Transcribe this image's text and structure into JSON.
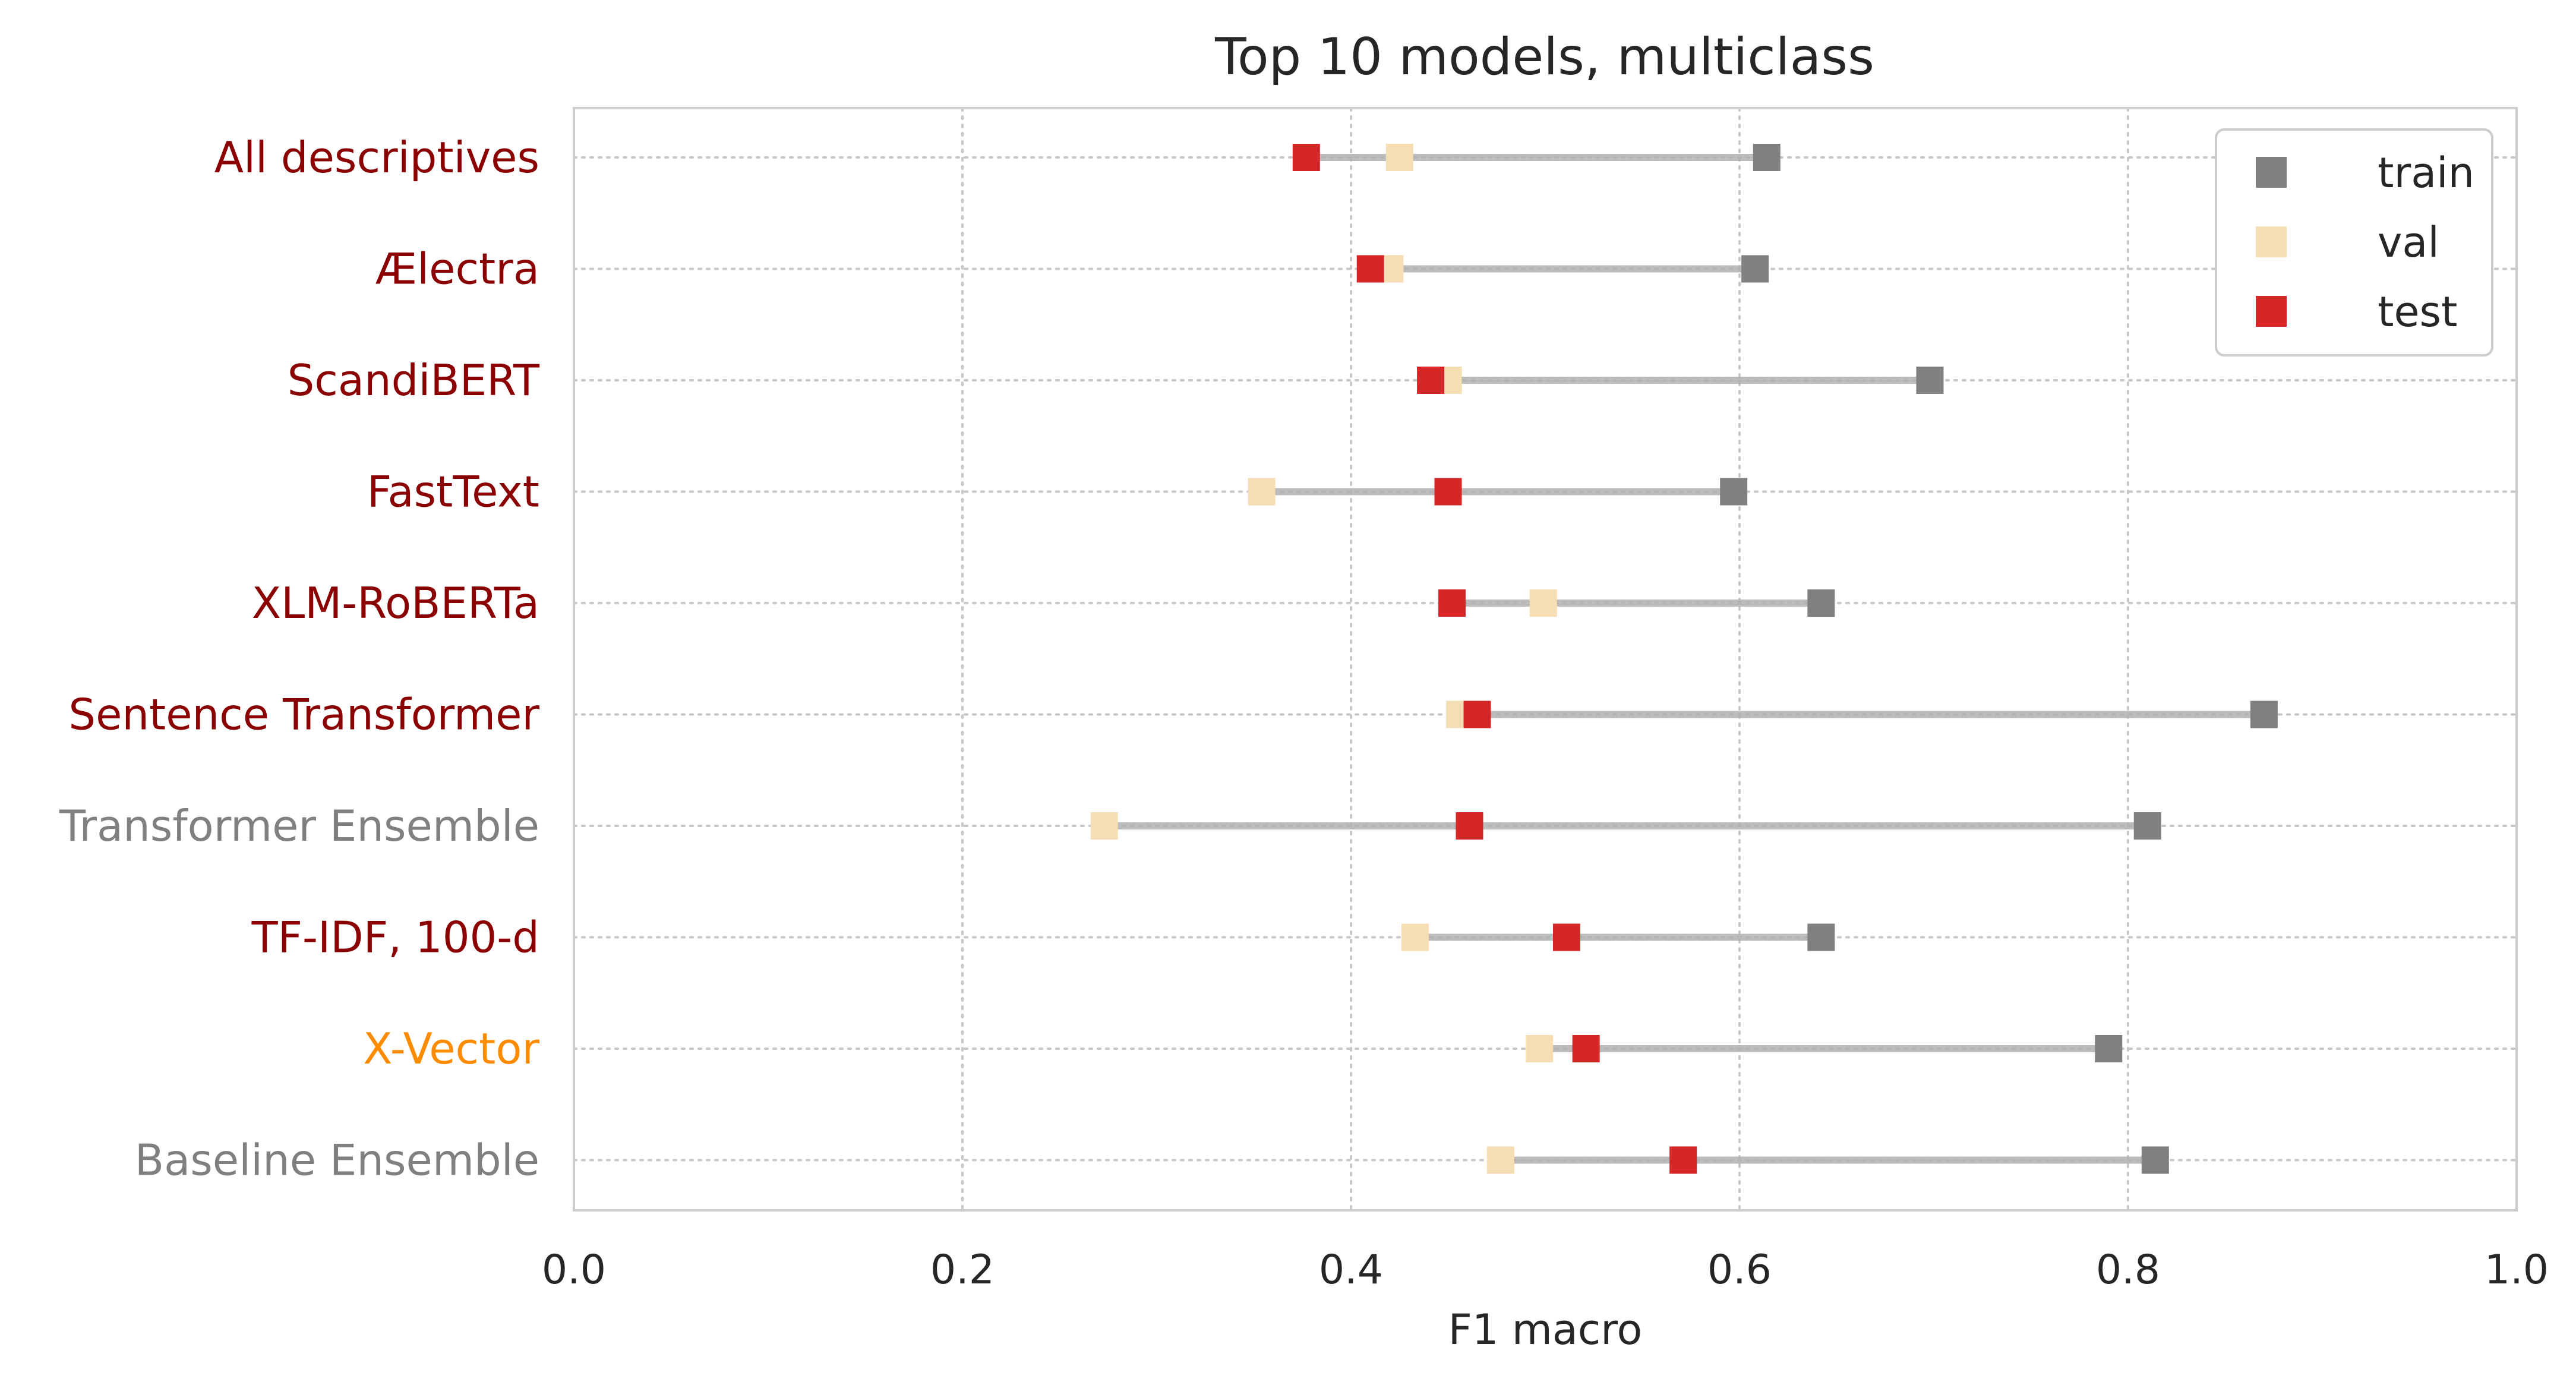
{
  "chart_data": {
    "type": "scatter",
    "title": "Top 10 models, multiclass",
    "xlabel": "F1 macro",
    "ylabel": "",
    "xlim": [
      0.0,
      1.0
    ],
    "xticks": [
      "0.0",
      "0.2",
      "0.4",
      "0.6",
      "0.8",
      "1.0"
    ],
    "grid": true,
    "legend_position": "top-right",
    "categories": [
      "All descriptives",
      "Ælectra",
      "ScandiBERT",
      "FastText",
      "XLM-RoBERTa",
      "Sentence Transformer",
      "Transformer Ensemble",
      "TF-IDF, 100-d",
      "X-Vector",
      "Baseline Ensemble"
    ],
    "category_colors": [
      "#8b0000",
      "#8b0000",
      "#8b0000",
      "#8b0000",
      "#8b0000",
      "#8b0000",
      "#808080",
      "#8b0000",
      "#ff8c00",
      "#808080"
    ],
    "series": [
      {
        "name": "train",
        "color": "#808080",
        "values": [
          0.614,
          0.608,
          0.698,
          0.597,
          0.642,
          0.87,
          0.81,
          0.642,
          0.79,
          0.814
        ]
      },
      {
        "name": "val",
        "color": "#f5deb3",
        "values": [
          0.425,
          0.42,
          0.45,
          0.354,
          0.499,
          0.456,
          0.273,
          0.433,
          0.497,
          0.477
        ]
      },
      {
        "name": "test",
        "color": "#d62728",
        "values": [
          0.377,
          0.41,
          0.441,
          0.45,
          0.452,
          0.465,
          0.461,
          0.511,
          0.521,
          0.571
        ]
      }
    ]
  }
}
